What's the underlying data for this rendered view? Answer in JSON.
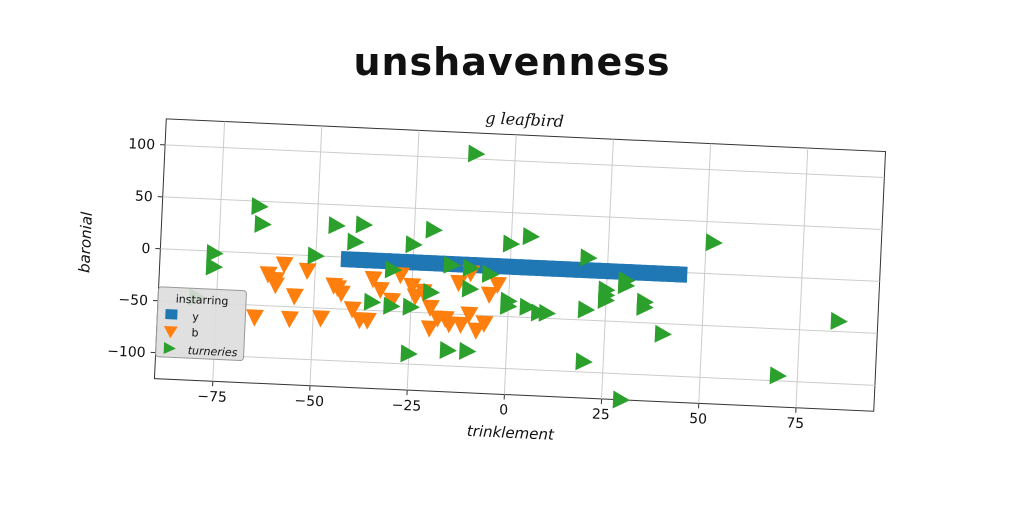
{
  "page_title": "unshavenness",
  "colors": {
    "y": "#1f77b4",
    "b": "#ff7f0e",
    "turneries": "#2ca02c"
  },
  "chart_data": {
    "type": "scatter",
    "title": "g leafbird",
    "xlabel": "trinklement",
    "ylabel": "baronial",
    "xlim": [
      -90,
      95
    ],
    "ylim": [
      -125,
      125
    ],
    "xticks": [
      -75,
      -50,
      -25,
      0,
      25,
      50,
      75
    ],
    "yticks": [
      -100,
      -50,
      0,
      50,
      100
    ],
    "grid": true,
    "legend": {
      "title": "instarring",
      "position": "lower-left"
    },
    "series": [
      {
        "name": "y",
        "marker": "square",
        "x": [
          -42,
          -40,
          -38,
          -36,
          -34,
          -32,
          -30,
          -28,
          -26,
          -24,
          -22,
          -20,
          -18,
          -16,
          -14,
          -12,
          -10,
          -8,
          -6,
          -4,
          -2,
          0,
          2,
          4,
          6,
          8,
          10,
          12,
          14,
          16,
          18,
          20,
          22,
          24,
          26,
          28,
          30,
          32,
          34,
          36,
          38,
          40,
          42,
          44
        ],
        "y": [
          -2,
          -2,
          -2,
          -2,
          -2,
          -2,
          -2,
          -2,
          -2,
          -2,
          -2,
          -2,
          -2,
          -2,
          -2,
          -2,
          -2,
          -2,
          -2,
          -2,
          -2,
          -2,
          -2,
          -2,
          -2,
          -2,
          -2,
          -2,
          -2,
          -2,
          -2,
          -2,
          -2,
          -2,
          -2,
          -2,
          -2,
          -2,
          -2,
          -2,
          -2,
          -2,
          -2,
          -2
        ]
      },
      {
        "name": "b",
        "marker": "triangle-down",
        "x": [
          -65,
          -62,
          -60,
          -58,
          -55,
          -52,
          -48,
          -45,
          -43,
          -40,
          -38,
          -35,
          -33,
          -30,
          -28,
          -25,
          -22,
          -20,
          -18,
          -15,
          -13,
          -10,
          -8,
          -5,
          -3,
          -60,
          -56,
          -44,
          -36,
          -24,
          -16,
          -12,
          -6,
          -20,
          -10
        ],
        "y": [
          -62,
          -20,
          -30,
          -10,
          -40,
          -15,
          -60,
          -28,
          -35,
          -50,
          -60,
          -20,
          -30,
          -40,
          -15,
          -25,
          -30,
          -45,
          -55,
          -60,
          -20,
          -50,
          -65,
          -30,
          -20,
          -25,
          -62,
          -30,
          -60,
          -35,
          -55,
          -60,
          -58,
          -65,
          -10
        ],
        "x_extra_note": ""
      },
      {
        "name": "turneries",
        "marker": "triangle-right",
        "x": [
          -10,
          -65,
          -64,
          -76,
          -76,
          -80,
          -50,
          -45,
          -40,
          -38,
          -25,
          -20,
          -15,
          -5,
          0,
          5,
          20,
          25,
          30,
          35,
          40,
          -5,
          -10,
          -20,
          -30,
          -30,
          -35,
          -25,
          -15,
          -10,
          0,
          10,
          20,
          25,
          30,
          52,
          70,
          85,
          30,
          -25,
          -10,
          20,
          0,
          5,
          8,
          25,
          35
        ],
        "y": [
          105,
          45,
          28,
          -2,
          -15,
          -45,
          0,
          30,
          15,
          32,
          15,
          30,
          -3,
          -10,
          20,
          28,
          10,
          -25,
          -10,
          -35,
          -60,
          -10,
          -25,
          -30,
          -10,
          -45,
          -42,
          -90,
          -85,
          -85,
          -40,
          -45,
          -90,
          -20,
          -15,
          30,
          -95,
          -40,
          -125,
          -45,
          -5,
          -40,
          -35,
          -40,
          -45,
          -30,
          -30
        ]
      }
    ]
  }
}
